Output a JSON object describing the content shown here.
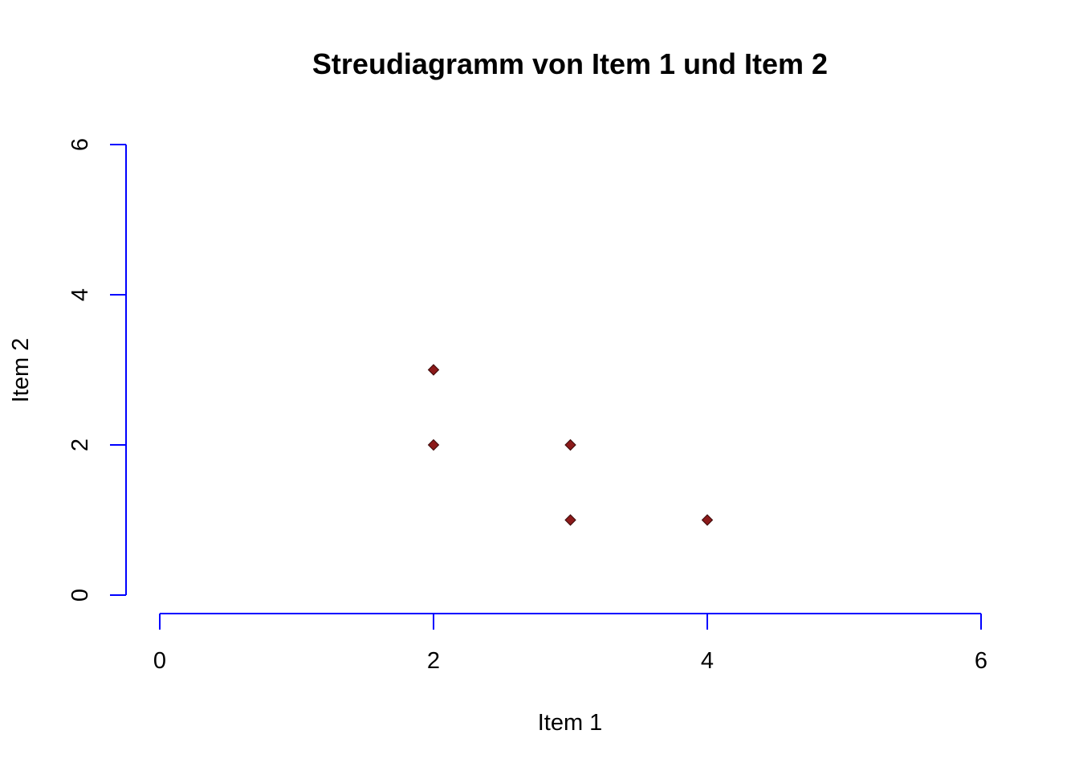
{
  "chart_data": {
    "type": "scatter",
    "title": "Streudiagramm von Item 1 und Item 2",
    "xlabel": "Item 1",
    "ylabel": "Item 2",
    "xlim": [
      0,
      6
    ],
    "ylim": [
      0,
      6
    ],
    "x_ticks": [
      "0",
      "2",
      "4",
      "6"
    ],
    "y_ticks": [
      "0",
      "2",
      "4",
      "6"
    ],
    "grid": false,
    "legend": "none",
    "marker": "diamond",
    "colors": {
      "axis": "#0000ff",
      "point_fill": "#8b1a1a",
      "point_stroke": "#3a0a0a"
    },
    "points": [
      {
        "x": 2,
        "y": 3
      },
      {
        "x": 2,
        "y": 2
      },
      {
        "x": 3,
        "y": 2
      },
      {
        "x": 3,
        "y": 1
      },
      {
        "x": 4,
        "y": 1
      }
    ]
  }
}
